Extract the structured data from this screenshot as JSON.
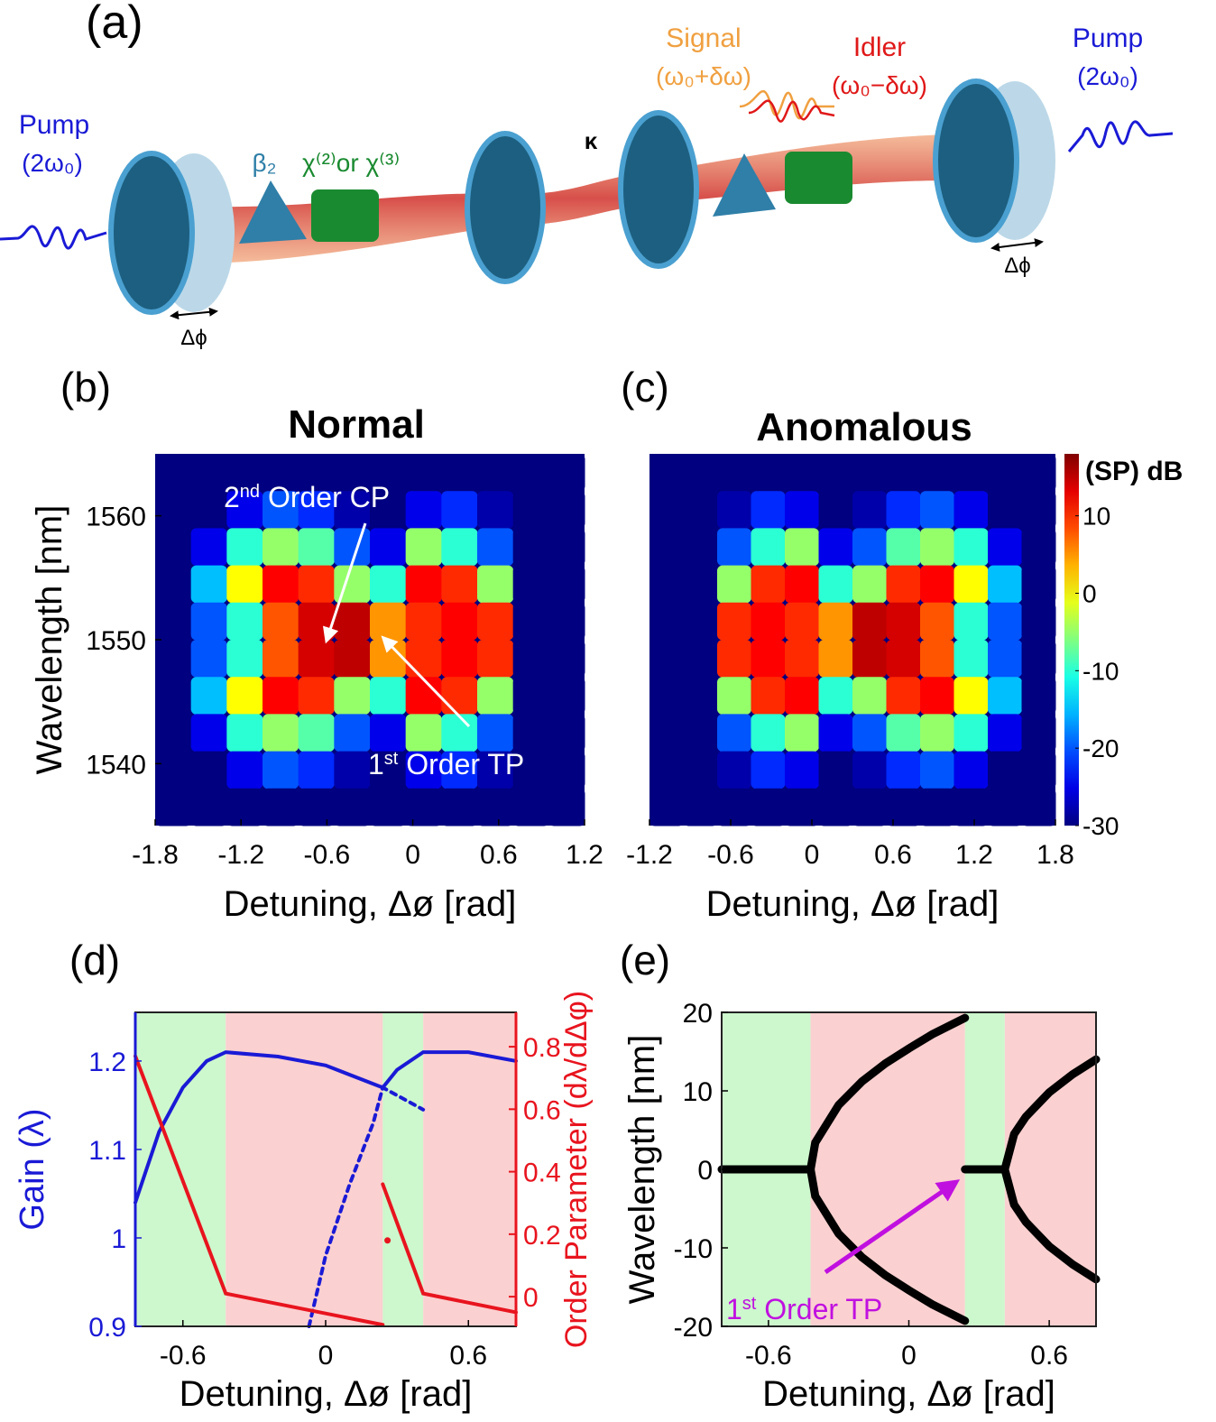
{
  "panel_a": {
    "label": "(a)",
    "pump_left": "Pump",
    "pump_left_freq": "(2ω₀)",
    "dispersion": "β₂",
    "nonlinearity": "χ⁽²⁾or χ⁽³⁾",
    "coupling": "κ",
    "signal": "Signal",
    "signal_freq": "(ω₀+δω)",
    "idler": "Idler",
    "idler_freq": "(ω₀−δω)",
    "pump_right": "Pump",
    "pump_right_freq": "(2ω₀)",
    "phase_left": "Δϕ",
    "phase_right": "Δϕ"
  },
  "chart_data": [
    {
      "type": "heatmap",
      "panel": "(b)",
      "title": "Normal",
      "xlabel": "Detuning, Δø [rad]",
      "ylabel": "Wavelength [nm]",
      "xlim": [
        -1.8,
        1.2
      ],
      "ylim": [
        1535,
        1565
      ],
      "xticks": [
        -1.8,
        -1.2,
        -0.6,
        0,
        0.6,
        1.2
      ],
      "yticks": [
        1540,
        1550,
        1560
      ],
      "colormap": "jet",
      "clim": [
        -30,
        18
      ],
      "x": [
        -1.675,
        -1.425,
        -1.175,
        -0.925,
        -0.675,
        -0.425,
        -0.175,
        0.075,
        0.325,
        0.575,
        0.825,
        1.075
      ],
      "y": [
        1563.5,
        1560.5,
        1557.5,
        1554.5,
        1551.5,
        1548.5,
        1545.5,
        1542.5,
        1539.5,
        1536.5
      ],
      "z": [
        [
          -30,
          -30,
          -30,
          -30,
          -30,
          -30,
          -30,
          -30,
          -30,
          -30,
          -30,
          -30
        ],
        [
          -30,
          -30,
          -25,
          -20,
          -22,
          -28,
          -30,
          -25,
          -22,
          -28,
          -30,
          -30
        ],
        [
          -30,
          -25,
          -10,
          -5,
          -8,
          -20,
          -25,
          -5,
          -10,
          -20,
          -30,
          -30
        ],
        [
          -30,
          -15,
          0,
          12,
          10,
          -5,
          -10,
          12,
          10,
          -5,
          -30,
          -30
        ],
        [
          -30,
          -20,
          -10,
          8,
          14,
          15,
          5,
          10,
          12,
          10,
          -30,
          -30
        ],
        [
          -30,
          -20,
          -10,
          8,
          14,
          15,
          5,
          10,
          12,
          10,
          -30,
          -30
        ],
        [
          -30,
          -15,
          0,
          12,
          10,
          -5,
          -10,
          12,
          10,
          -5,
          -30,
          -30
        ],
        [
          -30,
          -25,
          -10,
          -5,
          -8,
          -20,
          -25,
          -5,
          -10,
          -20,
          -30,
          -30
        ],
        [
          -30,
          -30,
          -25,
          -20,
          -22,
          -28,
          -30,
          -25,
          -22,
          -28,
          -30,
          -30
        ],
        [
          -30,
          -30,
          -30,
          -30,
          -30,
          -30,
          -30,
          -30,
          -30,
          -30,
          -30,
          -30
        ]
      ],
      "annotations": [
        [
          "2",
          "nd",
          " Order CP"
        ],
        [
          "1",
          "st",
          " Order TP"
        ]
      ]
    },
    {
      "type": "heatmap",
      "panel": "(c)",
      "title": "Anomalous",
      "xlabel": "Detuning, Δø [rad]",
      "xlim": [
        -1.2,
        1.8
      ],
      "ylim": [
        1535,
        1565
      ],
      "xticks": [
        -1.2,
        -0.6,
        0,
        0.6,
        1.2,
        1.8
      ],
      "colormap": "jet",
      "clim": [
        -30,
        18
      ],
      "colorbar": {
        "label": "(SP) dB",
        "ticks": [
          -30,
          -20,
          -10,
          0,
          10
        ]
      },
      "x": [
        -1.075,
        -0.825,
        -0.575,
        -0.325,
        -0.075,
        0.175,
        0.425,
        0.675,
        0.925,
        1.175,
        1.425,
        1.675
      ],
      "y": [
        1563.5,
        1560.5,
        1557.5,
        1554.5,
        1551.5,
        1548.5,
        1545.5,
        1542.5,
        1539.5,
        1536.5
      ],
      "z": [
        [
          -30,
          -30,
          -30,
          -30,
          -30,
          -30,
          -30,
          -30,
          -30,
          -30,
          -30,
          -30
        ],
        [
          -30,
          -30,
          -28,
          -22,
          -25,
          -30,
          -28,
          -22,
          -20,
          -25,
          -30,
          -30
        ],
        [
          -30,
          -30,
          -20,
          -10,
          -5,
          -25,
          -20,
          -8,
          -5,
          -10,
          -25,
          -30
        ],
        [
          -30,
          -30,
          -5,
          10,
          12,
          -10,
          -5,
          10,
          12,
          0,
          -15,
          -30
        ],
        [
          -30,
          -30,
          10,
          12,
          10,
          5,
          15,
          14,
          8,
          -10,
          -20,
          -30
        ],
        [
          -30,
          -30,
          10,
          12,
          10,
          5,
          15,
          14,
          8,
          -10,
          -20,
          -30
        ],
        [
          -30,
          -30,
          -5,
          10,
          12,
          -10,
          -5,
          10,
          12,
          0,
          -15,
          -30
        ],
        [
          -30,
          -30,
          -20,
          -10,
          -5,
          -25,
          -20,
          -8,
          -5,
          -10,
          -25,
          -30
        ],
        [
          -30,
          -30,
          -28,
          -22,
          -25,
          -30,
          -28,
          -22,
          -20,
          -25,
          -30,
          -30
        ],
        [
          -30,
          -30,
          -30,
          -30,
          -30,
          -30,
          -30,
          -30,
          -30,
          -30,
          -30,
          -30
        ]
      ]
    },
    {
      "type": "line",
      "panel": "(d)",
      "xlabel": "Detuning, Δø [rad]",
      "ylabel": "Gain (λ)",
      "y2label": "Order Parameter (dλ/dΔφ)",
      "xlim": [
        -0.8,
        0.8
      ],
      "ylim": [
        0.9,
        1.255
      ],
      "y2lim": [
        -0.095,
        0.91
      ],
      "xticks": [
        -0.6,
        0,
        0.6
      ],
      "yticks": [
        0.9,
        1,
        1.1,
        1.2
      ],
      "y2ticks": [
        0,
        0.2,
        0.4,
        0.6,
        0.8
      ],
      "ycolor": "#1a1ad6",
      "y2color": "#e8141e",
      "regions": [
        {
          "x": [
            -0.8,
            -0.42
          ],
          "color": "#cdf7cd"
        },
        {
          "x": [
            -0.42,
            0.24
          ],
          "color": "#fbd0d0"
        },
        {
          "x": [
            0.24,
            0.41
          ],
          "color": "#cdf7cd"
        },
        {
          "x": [
            0.41,
            0.8
          ],
          "color": "#fbd0d0"
        }
      ],
      "series": [
        {
          "color": "#1a1ad6",
          "x": [
            -0.8,
            -0.7,
            -0.6,
            -0.5,
            -0.42,
            -0.2,
            0,
            0.24,
            0.3,
            0.41,
            0.6,
            0.8
          ],
          "values": [
            1.04,
            1.12,
            1.17,
            1.2,
            1.21,
            1.205,
            1.195,
            1.17,
            1.19,
            1.21,
            1.21,
            1.2
          ]
        },
        {
          "color": "#1a1ad6",
          "dashed": true,
          "x": [
            -0.07,
            0,
            0.1,
            0.2,
            0.24,
            0.41
          ],
          "values": [
            0.9,
            0.98,
            1.06,
            1.13,
            1.17,
            1.145
          ]
        },
        {
          "color": "#e8141e",
          "axis": "y2",
          "x": [
            -0.8,
            -0.42,
            0.24,
            0.24,
            0.24,
            0.41,
            0.8
          ],
          "values": [
            0.77,
            0.01,
            -0.09,
            null,
            0.36,
            0.01,
            -0.05
          ]
        },
        {
          "color": "#e8141e",
          "axis": "y2",
          "marker": true,
          "x": [
            0.26
          ],
          "values": [
            0.18
          ]
        }
      ]
    },
    {
      "type": "line",
      "panel": "(e)",
      "xlabel": "Detuning, Δø [rad]",
      "ylabel": "Wavelength [nm]",
      "xlim": [
        -0.8,
        0.8
      ],
      "ylim": [
        -20,
        20
      ],
      "xticks": [
        -0.6,
        0,
        0.6
      ],
      "yticks": [
        -20,
        -10,
        0,
        10,
        20
      ],
      "regions": [
        {
          "x": [
            -0.8,
            -0.42
          ],
          "color": "#cdf7cd"
        },
        {
          "x": [
            -0.42,
            0.24
          ],
          "color": "#fbd0d0"
        },
        {
          "x": [
            0.24,
            0.41
          ],
          "color": "#cdf7cd"
        },
        {
          "x": [
            0.41,
            0.8
          ],
          "color": "#fbd0d0"
        }
      ],
      "series": [
        {
          "color": "#000000",
          "x": [
            -0.8,
            -0.42
          ],
          "values": [
            0,
            0
          ]
        },
        {
          "color": "#000000",
          "x": [
            -0.42,
            -0.4,
            -0.3,
            -0.2,
            -0.1,
            0,
            0.1,
            0.24
          ],
          "values": [
            0,
            3.4,
            8.2,
            11.2,
            13.5,
            15.4,
            17.2,
            19.3
          ]
        },
        {
          "color": "#000000",
          "x": [
            -0.42,
            -0.4,
            -0.3,
            -0.2,
            -0.1,
            0,
            0.1,
            0.24
          ],
          "values": [
            0,
            -3.4,
            -8.2,
            -11.2,
            -13.5,
            -15.4,
            -17.2,
            -19.3
          ]
        },
        {
          "color": "#000000",
          "x": [
            0.24,
            0.41
          ],
          "values": [
            0,
            0
          ]
        },
        {
          "color": "#000000",
          "x": [
            0.41,
            0.45,
            0.5,
            0.6,
            0.7,
            0.8
          ],
          "values": [
            0,
            4.5,
            6.7,
            9.8,
            12.1,
            14
          ]
        },
        {
          "color": "#000000",
          "x": [
            0.41,
            0.45,
            0.5,
            0.6,
            0.7,
            0.8
          ],
          "values": [
            0,
            -4.5,
            -6.7,
            -9.8,
            -12.1,
            -14
          ]
        }
      ],
      "annotations": [
        [
          "1",
          "st",
          " Order TP"
        ]
      ]
    }
  ]
}
